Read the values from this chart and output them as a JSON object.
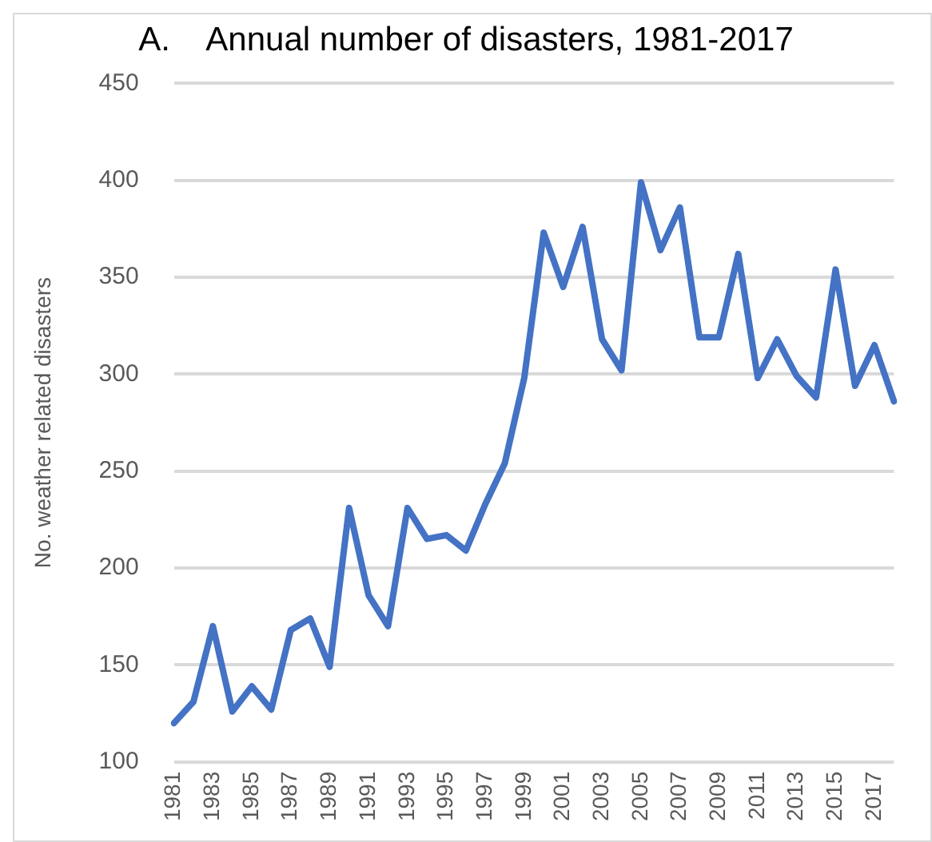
{
  "chart_data": {
    "type": "line",
    "title": "A.    Annual number of disasters, 1981-2017",
    "ylabel": "No. weather related disasters",
    "categories": [
      "1981",
      null,
      "1983",
      null,
      "1985",
      null,
      "1987",
      null,
      "1989",
      null,
      "1991",
      null,
      "1993",
      null,
      "1995",
      null,
      "1997",
      null,
      "1999",
      null,
      "2001",
      null,
      "2003",
      null,
      "2005",
      null,
      "2007",
      null,
      "2009",
      null,
      "2011",
      null,
      "2013",
      null,
      "2015",
      null,
      "2017",
      null
    ],
    "series": [
      {
        "color": "#4472c4",
        "values": [
          120,
          131,
          170,
          126,
          139,
          127,
          168,
          174,
          149,
          231,
          186,
          170,
          231,
          215,
          217,
          209,
          233,
          254,
          298,
          373,
          345,
          376,
          318,
          302,
          399,
          364,
          386,
          319,
          319,
          362,
          298,
          318,
          299,
          288,
          354,
          294,
          315,
          286
        ]
      }
    ],
    "ylim": [
      100,
      450
    ],
    "yticks": [
      100,
      150,
      200,
      250,
      300,
      350,
      400,
      450
    ],
    "grid": "y",
    "legend": false,
    "marker": "none",
    "line_style": "solid"
  }
}
